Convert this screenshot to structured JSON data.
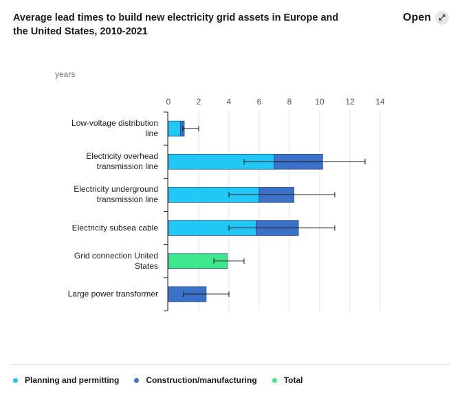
{
  "chart_data": {
    "type": "stacked_bar_horizontal",
    "title": "Average lead times to build new electricity grid assets in Europe and the United States, 2010-2021",
    "button": "Open",
    "axis_label": "years",
    "categories": [
      "Low-voltage distribution line",
      "Electricity overhead transmission line",
      "Electricity underground transmission line",
      "Electricity subsea cable",
      "Grid connection United States",
      "Large power transformer"
    ],
    "series": [
      {
        "name": "Planning and permitting",
        "color": "#22c8f5",
        "values": [
          0.8,
          7,
          6,
          5.8,
          null,
          null
        ]
      },
      {
        "name": "Construction/manufacturing",
        "color": "#3b72c8",
        "values": [
          0.25,
          3.2,
          2.3,
          2.8,
          null,
          2.5
        ]
      },
      {
        "name": "Total",
        "color": "#3ee68c",
        "values": [
          null,
          null,
          null,
          null,
          3.9,
          null
        ]
      }
    ],
    "ranges": [
      [
        0.95,
        2
      ],
      [
        5,
        13
      ],
      [
        4,
        11
      ],
      [
        4,
        11
      ],
      [
        3,
        5
      ],
      [
        1,
        4
      ]
    ],
    "xlim": [
      0,
      14
    ],
    "xticks": [
      0,
      2,
      4,
      6,
      8,
      10,
      12,
      14
    ],
    "grid": true
  }
}
